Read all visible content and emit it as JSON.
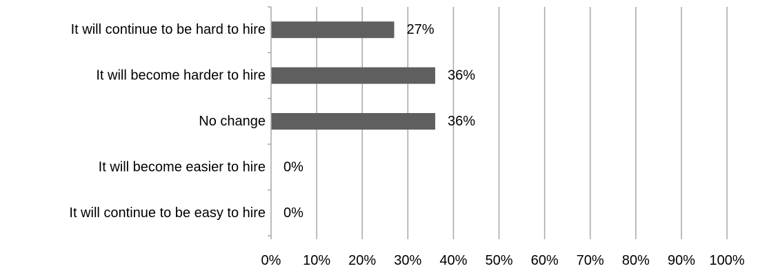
{
  "chart_data": {
    "type": "bar",
    "orientation": "horizontal",
    "categories": [
      "It will continue to be hard to hire",
      "It will become harder to hire",
      "No change",
      "It will become easier to hire",
      "It will continue to be easy to hire"
    ],
    "values": [
      27,
      36,
      36,
      0,
      0
    ],
    "value_labels": [
      "27%",
      "36%",
      "36%",
      "0%",
      "0%"
    ],
    "xlim": [
      0,
      100
    ],
    "x_ticks": [
      0,
      10,
      20,
      30,
      40,
      50,
      60,
      70,
      80,
      90,
      100
    ],
    "x_tick_labels": [
      "0%",
      "10%",
      "20%",
      "30%",
      "40%",
      "50%",
      "60%",
      "70%",
      "80%",
      "90%",
      "100%"
    ],
    "grid": "vertical",
    "legend": "none",
    "bar_color": "#5f5f5f",
    "grid_color": "#a6a6a6"
  }
}
